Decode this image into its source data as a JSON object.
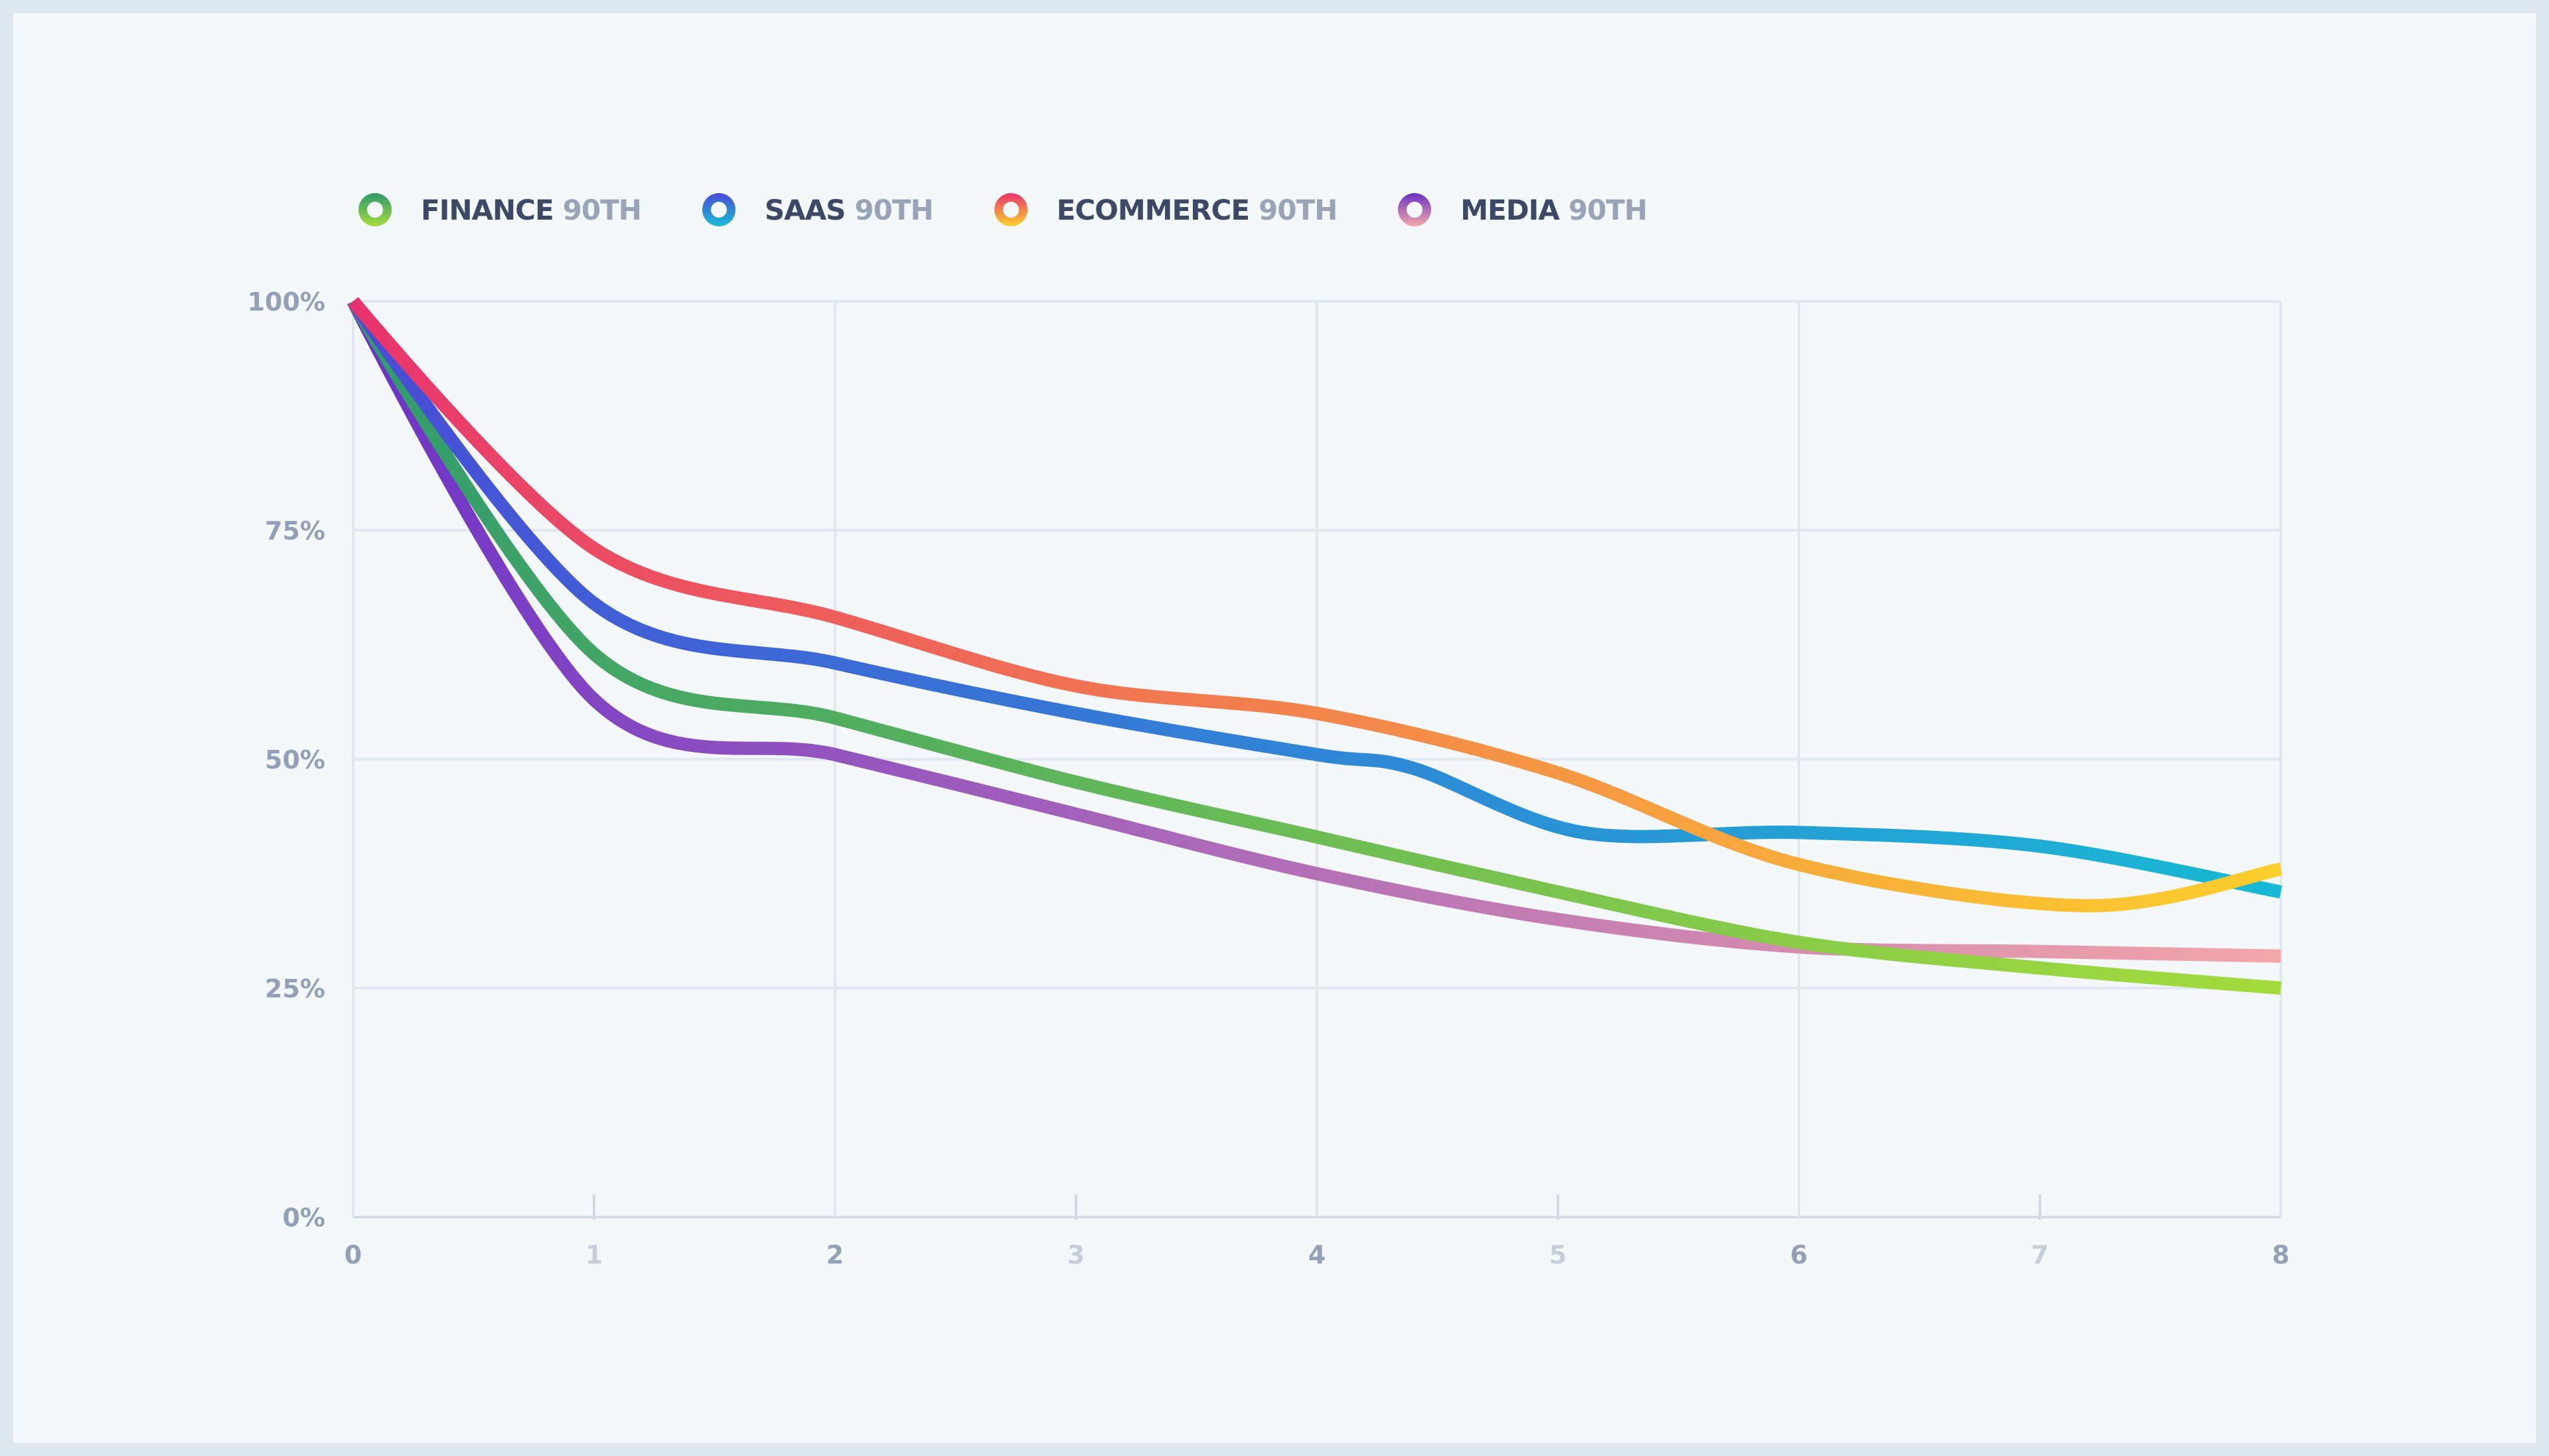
{
  "chart_data": {
    "type": "line",
    "title": "",
    "xlabel": "",
    "ylabel": "",
    "x": [
      0,
      1,
      2,
      3,
      4,
      5,
      6,
      7,
      8
    ],
    "x_ticks": [
      "0",
      "1",
      "2",
      "3",
      "4",
      "5",
      "6",
      "7",
      "8"
    ],
    "y_ticks": [
      "0%",
      "25%",
      "50%",
      "75%",
      "100%"
    ],
    "xlim": [
      0,
      8
    ],
    "ylim": [
      0,
      100
    ],
    "grid": true,
    "legend_position": "top-left",
    "series": [
      {
        "name": "FINANCE",
        "suffix": "90TH",
        "color_start": "#2e9a6e",
        "color_end": "#a5dc3c",
        "points": [
          [
            0,
            100
          ],
          [
            1,
            61.5
          ],
          [
            2,
            54.5
          ],
          [
            3,
            47.5
          ],
          [
            4,
            41.5
          ],
          [
            5,
            35.5
          ],
          [
            6,
            30
          ],
          [
            7,
            27.2
          ],
          [
            8,
            25
          ]
        ]
      },
      {
        "name": "SAAS",
        "suffix": "90TH",
        "color_start": "#4a4bd6",
        "color_end": "#17bcd5",
        "points": [
          [
            0,
            100
          ],
          [
            1,
            67
          ],
          [
            2,
            60.5
          ],
          [
            3,
            55
          ],
          [
            4,
            50.5
          ],
          [
            4.4,
            49
          ],
          [
            5.1,
            42
          ],
          [
            6,
            42
          ],
          [
            7,
            40.5
          ],
          [
            8,
            35.5
          ]
        ]
      },
      {
        "name": "ECOMMERCE",
        "suffix": "90TH",
        "color_start": "#e8336e",
        "color_end": "#fdd32a",
        "points": [
          [
            0,
            100
          ],
          [
            1,
            73
          ],
          [
            2,
            65.5
          ],
          [
            3,
            58
          ],
          [
            4,
            55
          ],
          [
            5,
            48.5
          ],
          [
            6,
            38.5
          ],
          [
            7.2,
            34
          ],
          [
            8,
            38
          ]
        ]
      },
      {
        "name": "MEDIA",
        "suffix": "90TH",
        "color_start": "#6a30c8",
        "color_end": "#f5a8a8",
        "points": [
          [
            0,
            100
          ],
          [
            1,
            56.5
          ],
          [
            2,
            50.5
          ],
          [
            3,
            44
          ],
          [
            4,
            37.5
          ],
          [
            5,
            32.5
          ],
          [
            6,
            29.5
          ],
          [
            7,
            29
          ],
          [
            8,
            28.5
          ]
        ]
      }
    ]
  }
}
